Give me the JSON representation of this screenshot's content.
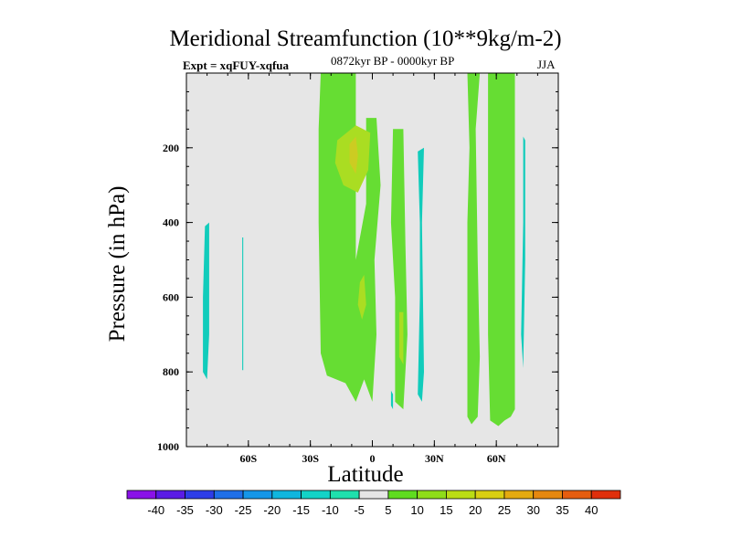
{
  "chart_data": {
    "type": "contour",
    "title": "Meridional Streamfunction (10**9kg/m-2)",
    "subtitle_left": "Expt = xqFUY-xqfua",
    "subtitle_center": "0872kyr BP - 0000kyr BP",
    "subtitle_right": "JJA",
    "xlabel": "Latitude",
    "ylabel": "Pressure (in hPa)",
    "xlim": [
      -90,
      90
    ],
    "ylim": [
      1000,
      0
    ],
    "x_ticks": [
      {
        "value": -60,
        "label": "60S"
      },
      {
        "value": -30,
        "label": "30S"
      },
      {
        "value": 0,
        "label": "0"
      },
      {
        "value": 30,
        "label": "30N"
      },
      {
        "value": 60,
        "label": "60N"
      }
    ],
    "y_ticks": [
      {
        "value": 200,
        "label": "200"
      },
      {
        "value": 400,
        "label": "400"
      },
      {
        "value": 600,
        "label": "600"
      },
      {
        "value": 800,
        "label": "800"
      },
      {
        "value": 1000,
        "label": "1000"
      }
    ],
    "colorbar": {
      "levels": [
        "-40",
        "-35",
        "-30",
        "-25",
        "-20",
        "-15",
        "-10",
        "-5",
        "5",
        "10",
        "15",
        "20",
        "25",
        "30",
        "35",
        "40"
      ],
      "colors": [
        "#8a12e8",
        "#5a1be6",
        "#2e3de8",
        "#1f6fe8",
        "#1596e8",
        "#10b6de",
        "#13d3c7",
        "#1fe0ad",
        "#e6e6e6",
        "#5fdc1f",
        "#8fdd19",
        "#bbdd14",
        "#d9cf12",
        "#e4aa10",
        "#e6880f",
        "#e65d0f",
        "#e02f0c"
      ]
    },
    "regions": [
      {
        "name": "green-band-southern-subtropics",
        "level_color": "#66dd33",
        "points": [
          [
            -25,
            0
          ],
          [
            -8,
            0
          ],
          [
            -8,
            500
          ],
          [
            -3,
            350
          ],
          [
            -3,
            120
          ],
          [
            2,
            120
          ],
          [
            4,
            300
          ],
          [
            1,
            500
          ],
          [
            2,
            700
          ],
          [
            0,
            880
          ],
          [
            -4,
            820
          ],
          [
            -8,
            880
          ],
          [
            -13,
            830
          ],
          [
            -22,
            810
          ],
          [
            -25,
            750
          ],
          [
            -26,
            400
          ],
          [
            -26,
            150
          ]
        ]
      },
      {
        "name": "lime-core-upper",
        "level_color": "#aadd22",
        "points": [
          [
            -17,
            180
          ],
          [
            -8,
            140
          ],
          [
            -1,
            160
          ],
          [
            -2,
            260
          ],
          [
            -7,
            320
          ],
          [
            -14,
            300
          ],
          [
            -18,
            240
          ]
        ]
      },
      {
        "name": "yellow-core-center",
        "level_color": "#cccc22",
        "points": [
          [
            -11,
            190
          ],
          [
            -8,
            170
          ],
          [
            -7,
            220
          ],
          [
            -8,
            270
          ],
          [
            -11,
            240
          ]
        ]
      },
      {
        "name": "lime-core-lower",
        "level_color": "#aadd22",
        "points": [
          [
            -6,
            560
          ],
          [
            -4,
            540
          ],
          [
            -3,
            620
          ],
          [
            -5,
            660
          ],
          [
            -7,
            620
          ]
        ]
      },
      {
        "name": "green-band-northern-tropics",
        "level_color": "#66dd33",
        "points": [
          [
            10,
            150
          ],
          [
            15,
            150
          ],
          [
            16,
            460
          ],
          [
            17,
            700
          ],
          [
            15,
            900
          ],
          [
            11,
            880
          ],
          [
            11,
            600
          ],
          [
            9,
            400
          ]
        ]
      },
      {
        "name": "lime-core-northern-tropics",
        "level_color": "#aadd22",
        "points": [
          [
            13,
            640
          ],
          [
            15,
            640
          ],
          [
            15,
            780
          ],
          [
            13,
            760
          ]
        ]
      },
      {
        "name": "teal-band-northern-tropics",
        "level_color": "#11ccbb",
        "points": [
          [
            22,
            210
          ],
          [
            25,
            200
          ],
          [
            24,
            400
          ],
          [
            25,
            800
          ],
          [
            24,
            880
          ],
          [
            22,
            860
          ],
          [
            23,
            600
          ],
          [
            23,
            400
          ]
        ]
      },
      {
        "name": "green-band-northern-midlatitudes",
        "level_color": "#66dd33",
        "points": [
          [
            46,
            0
          ],
          [
            52,
            0
          ],
          [
            50,
            150
          ],
          [
            51,
            500
          ],
          [
            52,
            760
          ],
          [
            51,
            920
          ],
          [
            48,
            940
          ],
          [
            46,
            920
          ],
          [
            46,
            700
          ],
          [
            46,
            400
          ],
          [
            47,
            200
          ]
        ]
      },
      {
        "name": "green-band-northern-high-latitudes",
        "level_color": "#66dd33",
        "points": [
          [
            56,
            0
          ],
          [
            69,
            0
          ],
          [
            69,
            900
          ],
          [
            67,
            920
          ],
          [
            64,
            930
          ],
          [
            61,
            945
          ],
          [
            57,
            930
          ],
          [
            56,
            700
          ],
          [
            56,
            400
          ],
          [
            56,
            150
          ]
        ]
      },
      {
        "name": "teal-sliver-northern-high-latitudes",
        "level_color": "#11ccbb",
        "points": [
          [
            73,
            170
          ],
          [
            74,
            180
          ],
          [
            74,
            500
          ],
          [
            73,
            790
          ],
          [
            72,
            700
          ],
          [
            73,
            400
          ]
        ]
      },
      {
        "name": "teal-band-southern-high-latitudes",
        "level_color": "#11ccbb",
        "points": [
          [
            -81,
            410
          ],
          [
            -79,
            400
          ],
          [
            -79,
            700
          ],
          [
            -80,
            820
          ],
          [
            -82,
            800
          ],
          [
            -82,
            600
          ]
        ]
      },
      {
        "name": "teal-sliver-southern-high-latitudes",
        "level_color": "#11ccbb",
        "points": [
          [
            -63,
            440
          ],
          [
            -62.5,
            440
          ],
          [
            -62.5,
            795
          ],
          [
            -63,
            795
          ]
        ]
      },
      {
        "name": "teal-speck-equator",
        "level_color": "#11ccbb",
        "points": [
          [
            9,
            850
          ],
          [
            10,
            860
          ],
          [
            10,
            900
          ],
          [
            9,
            890
          ]
        ]
      }
    ]
  }
}
